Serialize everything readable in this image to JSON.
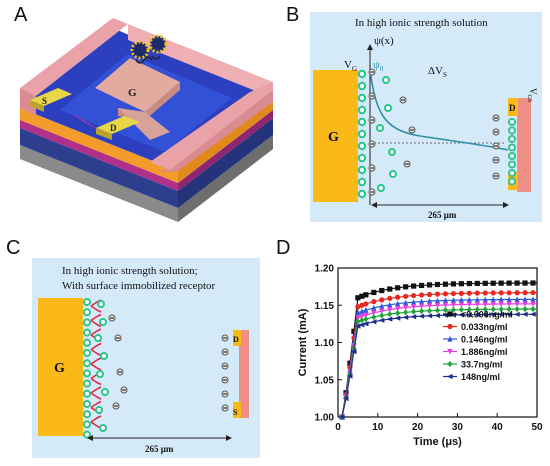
{
  "panels": {
    "A": {
      "letter": "A",
      "gate_label": "G",
      "source_label": "S",
      "drain_label": "D"
    },
    "B": {
      "letter": "B",
      "title": "In high ionic strength solution",
      "psi_label": "ψ(x)",
      "vg_label": "V",
      "vg_sub": "G",
      "psi0_label": "ψ",
      "psi0_sub": "0",
      "dvs_label": "ΔV",
      "dvs_sub": "S",
      "vgs_label": "V",
      "vgs_sub": "GS",
      "gate_label": "G",
      "drain_label": "D",
      "source_label": "S",
      "distance_label": "265 μm"
    },
    "C": {
      "letter": "C",
      "title_line1": "In high ionic strength solution;",
      "title_line2": "With surface immobilized receptor",
      "gate_label": "G",
      "drain_label": "D",
      "source_label": "S",
      "distance_label": "265 μm"
    },
    "D": {
      "letter": "D"
    }
  },
  "colors": {
    "gate": "#fbb917",
    "panel_bg": "#d5eaf9",
    "ion_green": "#2bc48a",
    "curve": "#2f8fa8"
  },
  "chart_data": {
    "type": "line",
    "xlabel": "Time (μs)",
    "ylabel": "Current (mA)",
    "xlim": [
      0,
      50
    ],
    "ylim": [
      1.0,
      1.2
    ],
    "xticks": [
      "0",
      "10",
      "20",
      "30",
      "40",
      "50"
    ],
    "yticks": [
      "1.00",
      "1.05",
      "1.10",
      "1.15",
      "1.20"
    ],
    "legend_position": "center-right",
    "series": [
      {
        "name": "<0.006ng/ml",
        "color": "#111111",
        "marker": "square",
        "plateau": 1.18,
        "knee": 1.16
      },
      {
        "name": "0.033ng/ml",
        "color": "#e8281e",
        "marker": "circle",
        "plateau": 1.167,
        "knee": 1.148
      },
      {
        "name": "0.146ng/ml",
        "color": "#2c5ad6",
        "marker": "triangle",
        "plateau": 1.158,
        "knee": 1.14
      },
      {
        "name": "1.886ng/ml",
        "color": "#e23ee0",
        "marker": "triangle-down",
        "plateau": 1.152,
        "knee": 1.133
      },
      {
        "name": "33.7ng/ml",
        "color": "#23a33a",
        "marker": "diamond",
        "plateau": 1.145,
        "knee": 1.128
      },
      {
        "name": "148ng/ml",
        "color": "#1d2f8c",
        "marker": "triangle-left",
        "plateau": 1.138,
        "knee": 1.122
      }
    ]
  }
}
